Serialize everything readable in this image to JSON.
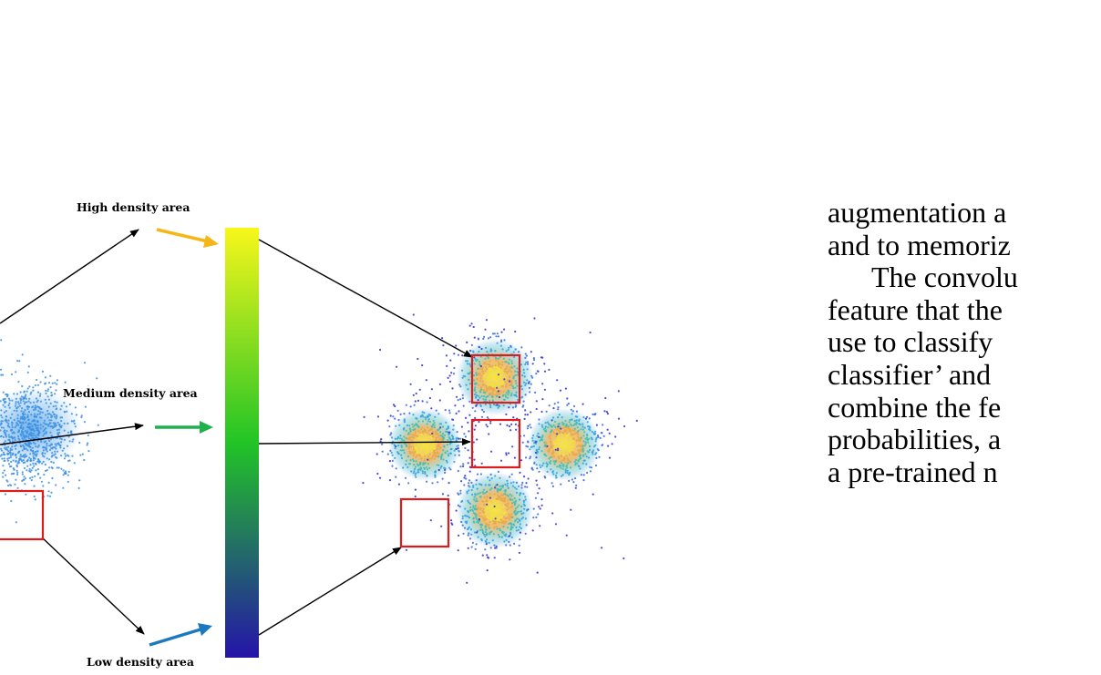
{
  "figure": {
    "labels": {
      "high": "High density area",
      "medium": "Medium density area",
      "low": "Low density area"
    },
    "colors": {
      "high_arrow": "#f5b616",
      "medium_arrow": "#1db24b",
      "low_arrow": "#1c79c0",
      "box": "#e01b1b",
      "left_points": "#3c8fe0",
      "colorbar_top": "#f7f71a",
      "colorbar_mid": "#22c426",
      "colorbar_bottom": "#2414a8"
    },
    "icons": {
      "arrow_high": "arrow-right-down-icon",
      "arrow_medium": "arrow-right-icon",
      "arrow_low": "arrow-right-up-icon"
    }
  },
  "text_lines": [
    "augmentation a",
    "and to memoriz",
    "The convolu",
    "feature that the",
    "use to classify",
    "classifier’ and",
    "combine the fe",
    "probabilities, a",
    "a pre-trained n"
  ]
}
